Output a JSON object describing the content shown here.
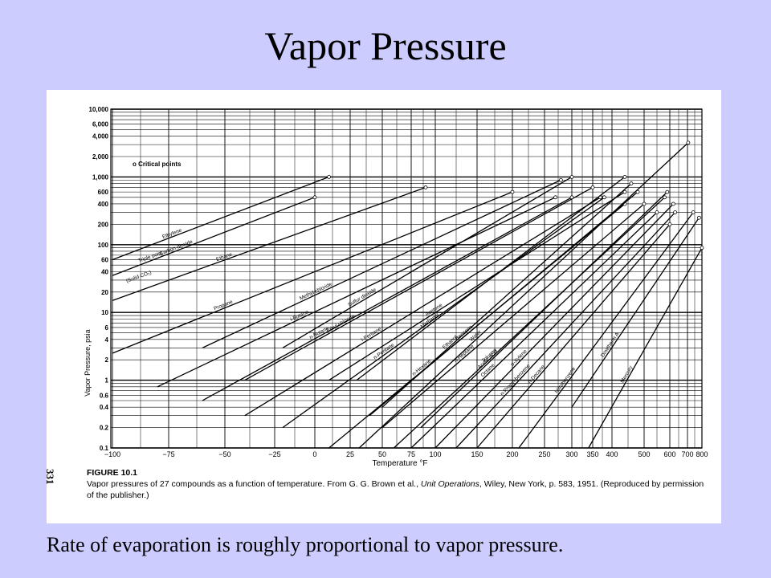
{
  "slide": {
    "title": "Vapor Pressure",
    "footer": "Rate of evaporation is roughly proportional to vapor pressure.",
    "page_number": "331",
    "background_color": "#ccccff"
  },
  "figure": {
    "label": "FIGURE 10.1",
    "caption_prefix": "Vapor pressures of 27 compounds as a function of temperature. From G. G. Brown et al., ",
    "caption_book": "Unit Operations",
    "caption_suffix": ", Wiley, New York, p. 583, 1951. (Reproduced by permission of the publisher.)"
  },
  "chart_data": {
    "type": "line",
    "xlabel": "Temperature °F",
    "ylabel": "Vapor Pressure, psia",
    "legend": "o Critical points",
    "x_ticks": [
      "−100",
      "−75",
      "−50",
      "−25",
      "0",
      "25",
      "50",
      "75",
      "100",
      "150",
      "200",
      "250",
      "300",
      "350",
      "400",
      "500",
      "600",
      "700",
      "800"
    ],
    "y_ticks": [
      "10,000",
      "6,000",
      "4,000",
      "2,000",
      "1,000",
      "600",
      "400",
      "200",
      "100",
      "60",
      "40",
      "20",
      "10",
      "6",
      "4",
      "2",
      "1",
      "0.6",
      "0.4",
      "0.2",
      "0.1"
    ],
    "ylim": [
      0.1,
      10000
    ],
    "y_scale": "log",
    "grid": true,
    "annotations": [
      "Triple point",
      "(Solid CO₂)"
    ],
    "series": [
      {
        "name": "Ethylene",
        "x": [
          -100,
          10
        ],
        "y": [
          60,
          1000
        ]
      },
      {
        "name": "Carbon dioxide",
        "x": [
          -100,
          0
        ],
        "y": [
          35,
          500
        ]
      },
      {
        "name": "Ethane",
        "x": [
          -100,
          90
        ],
        "y": [
          15,
          700
        ]
      },
      {
        "name": "Propane",
        "x": [
          -100,
          200
        ],
        "y": [
          2.5,
          600
        ]
      },
      {
        "name": "Methyl chloride",
        "x": [
          -60,
          280
        ],
        "y": [
          3,
          900
        ]
      },
      {
        "name": "i-Butane",
        "x": [
          -80,
          270
        ],
        "y": [
          0.8,
          500
        ]
      },
      {
        "name": "Ethyl chloride",
        "x": [
          -40,
          350
        ],
        "y": [
          1,
          700
        ]
      },
      {
        "name": "n-Butane",
        "x": [
          -60,
          300
        ],
        "y": [
          0.5,
          500
        ]
      },
      {
        "name": "i-Pentane",
        "x": [
          -40,
          370
        ],
        "y": [
          0.3,
          500
        ]
      },
      {
        "name": "Sulfur dioxide",
        "x": [
          -20,
          300
        ],
        "y": [
          3,
          1000
        ]
      },
      {
        "name": "n-Pentane",
        "x": [
          -20,
          380
        ],
        "y": [
          0.2,
          500
        ]
      },
      {
        "name": "Acetone",
        "x": [
          10,
          440
        ],
        "y": [
          1,
          600
        ]
      },
      {
        "name": "Methanol",
        "x": [
          30,
          440
        ],
        "y": [
          1,
          1000
        ]
      },
      {
        "name": "n-Hexane",
        "x": [
          10,
          440
        ],
        "y": [
          0.1,
          400
        ]
      },
      {
        "name": "Benzene",
        "x": [
          40,
          480
        ],
        "y": [
          0.3,
          600
        ]
      },
      {
        "name": "Ethanol",
        "x": [
          50,
          460
        ],
        "y": [
          0.4,
          800
        ]
      },
      {
        "name": "n-Heptane",
        "x": [
          50,
          500
        ],
        "y": [
          0.2,
          400
        ]
      },
      {
        "name": "Toluene",
        "x": [
          60,
          580
        ],
        "y": [
          0.1,
          500
        ]
      },
      {
        "name": "Acetic acid",
        "x": [
          85,
          590
        ],
        "y": [
          0.2,
          600
        ]
      },
      {
        "name": "Octane",
        "x": [
          75,
          550
        ],
        "y": [
          0.1,
          300
        ]
      },
      {
        "name": "o-Xylene",
        "x": [
          100,
          620
        ],
        "y": [
          0.1,
          400
        ]
      },
      {
        "name": "n-Propyl benzene",
        "x": [
          125,
          630
        ],
        "y": [
          0.1,
          300
        ]
      },
      {
        "name": "n-Decane",
        "x": [
          150,
          600
        ],
        "y": [
          0.1,
          200
        ]
      },
      {
        "name": "Water",
        "x": [
          32,
          705
        ],
        "y": [
          0.1,
          3200
        ]
      },
      {
        "name": "Nitrobenzene",
        "x": [
          210,
          740
        ],
        "y": [
          0.1,
          300
        ]
      },
      {
        "name": "Dowtherm A",
        "x": [
          300,
          780
        ],
        "y": [
          0.4,
          250
        ]
      },
      {
        "name": "Mercury",
        "x": [
          340,
          800
        ],
        "y": [
          0.1,
          90
        ]
      }
    ]
  }
}
